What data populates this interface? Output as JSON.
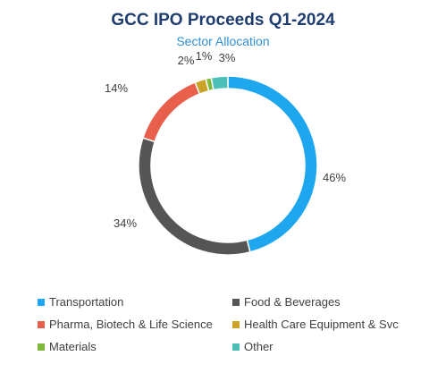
{
  "chart_data": {
    "type": "pie",
    "donut": true,
    "title": "GCC IPO Proceeds Q1-2024",
    "subtitle": "Sector Allocation",
    "value_format": "percent",
    "legend_position": "bottom",
    "categories": [
      "Transportation",
      "Food & Beverages",
      "Pharma, Biotech & Life Science",
      "Health Care Equipment & Svc",
      "Materials",
      "Other"
    ],
    "values": [
      46,
      34,
      14,
      2,
      1,
      3
    ],
    "labels": [
      "46%",
      "34%",
      "14%",
      "2%",
      "1%",
      "3%"
    ],
    "colors": [
      "#1ea7ef",
      "#555555",
      "#e8604c",
      "#c9a227",
      "#7fba3c",
      "#4bbfb8"
    ]
  }
}
